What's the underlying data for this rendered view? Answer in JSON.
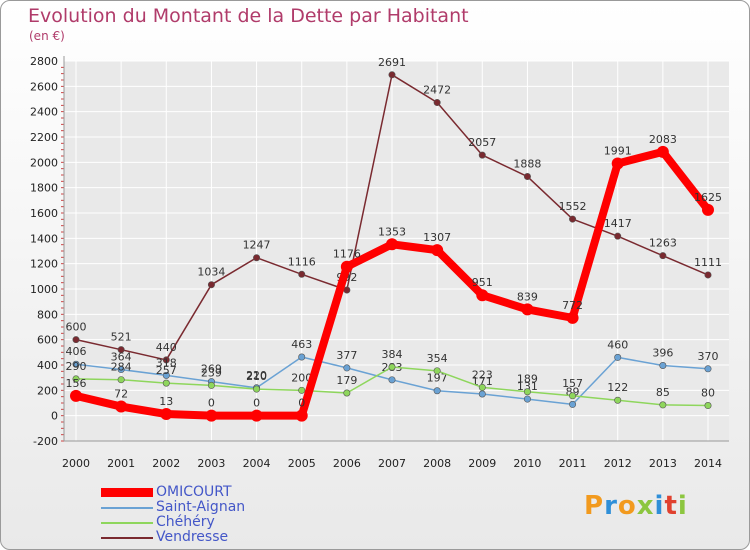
{
  "title": "Evolution du Montant de la Dette par Habitant",
  "subtitle": "(en €)",
  "logo_text": "Proxiti",
  "logo_colors": [
    "#f29a1e",
    "#2f8fd8",
    "#f29a1e",
    "#8cc63f",
    "#2f8fd8",
    "#e0412f",
    "#8cc63f"
  ],
  "chart_data": {
    "type": "line",
    "title": "Evolution du Montant de la Dette par Habitant",
    "ylabel": "(en €)",
    "xlabel": "",
    "x": [
      "2000",
      "2001",
      "2002",
      "2003",
      "2004",
      "2005",
      "2006",
      "2007",
      "2008",
      "2009",
      "2010",
      "2011",
      "2012",
      "2013",
      "2014"
    ],
    "ylim": [
      -200,
      2800
    ],
    "yticks": [
      -200,
      0,
      200,
      400,
      600,
      800,
      1000,
      1200,
      1400,
      1600,
      1800,
      2000,
      2200,
      2400,
      2600,
      2800
    ],
    "grid": true,
    "legend_position": "bottom-left",
    "series": [
      {
        "name": "OMICOURT",
        "color": "#ff0000",
        "values": [
          156,
          72,
          13,
          0,
          0,
          0,
          1176,
          1353,
          1307,
          951,
          839,
          772,
          1991,
          2083,
          1625
        ]
      },
      {
        "name": "Saint-Aignan",
        "color": "#6aa2d4",
        "values": [
          406,
          364,
          318,
          269,
          220,
          463,
          377,
          283,
          197,
          171,
          131,
          89,
          460,
          396,
          370
        ]
      },
      {
        "name": "Chéhéry",
        "color": "#8ed65c",
        "values": [
          290,
          284,
          257,
          239,
          210,
          200,
          179,
          384,
          354,
          223,
          189,
          157,
          122,
          85,
          80
        ]
      },
      {
        "name": "Vendresse",
        "color": "#7a2a30",
        "values": [
          600,
          521,
          440,
          1034,
          1247,
          1116,
          992,
          2691,
          2472,
          2057,
          1888,
          1552,
          1417,
          1263,
          1111
        ]
      }
    ]
  }
}
